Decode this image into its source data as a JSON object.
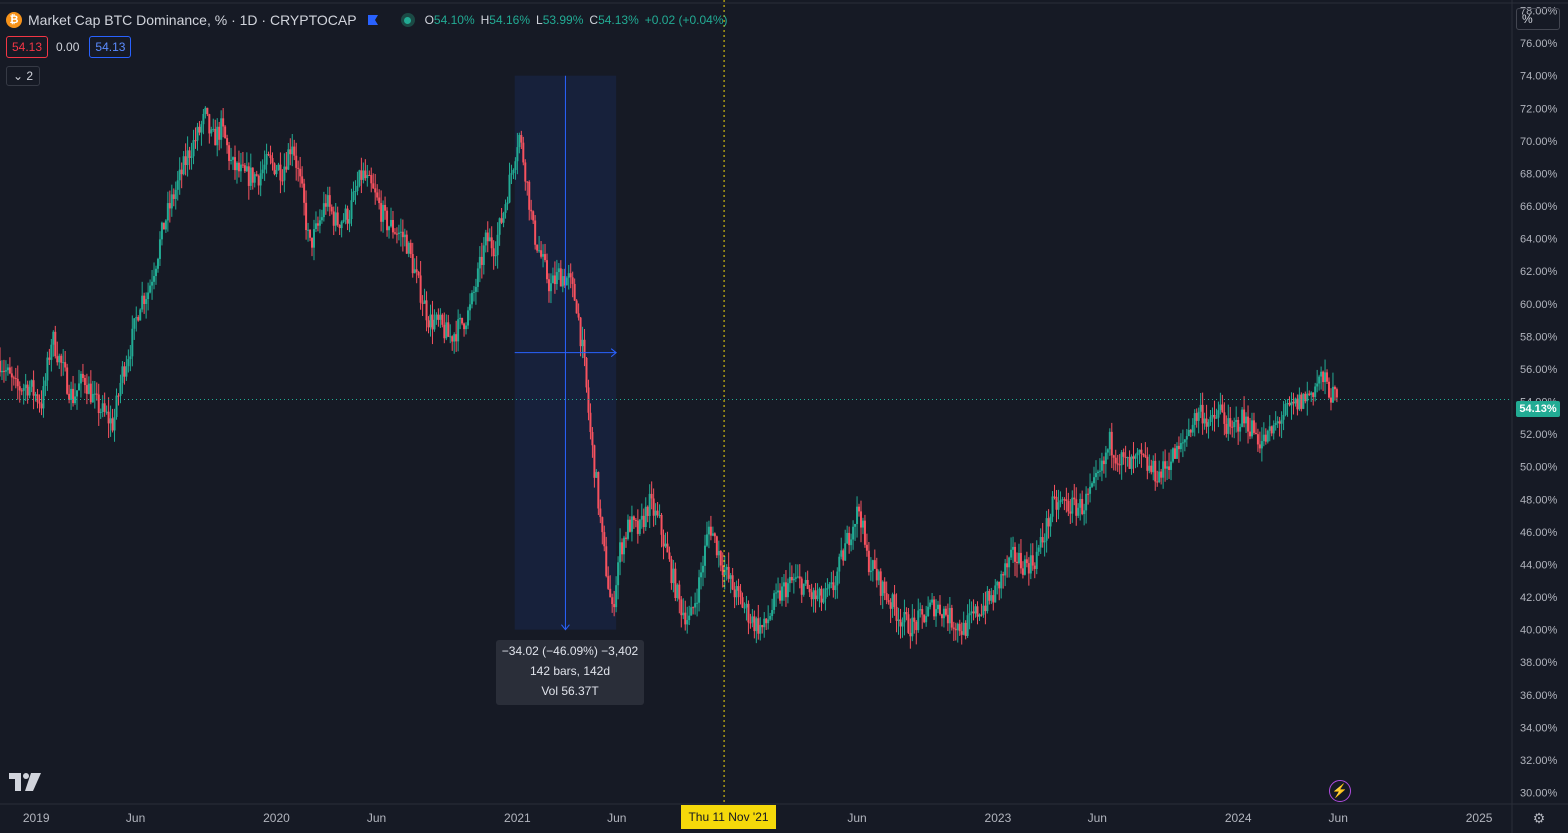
{
  "header": {
    "symbol_icon": "bitcoin-icon",
    "symbol_glyph": "₿",
    "title": "Market Cap BTC Dominance, % · 1D · CRYPTOCAP",
    "ohlc": [
      {
        "k": "O",
        "v": "54.10%"
      },
      {
        "k": "H",
        "v": "54.16%"
      },
      {
        "k": "L",
        "v": "53.99%"
      },
      {
        "k": "C",
        "v": "54.13%"
      },
      {
        "k": "",
        "v": "+0.02 (+0.04%)"
      }
    ],
    "bid": "54.13",
    "spread": "0.00",
    "ask": "54.13",
    "indicators_toggle": "⌄ 2"
  },
  "axis_unit_button": "%",
  "last_price_label": "54.13%",
  "measure_tooltip": {
    "line1": "−34.02 (−46.09%) −3,402",
    "line2": "142 bars, 142d",
    "line3": "Vol 56.37T"
  },
  "crosshair_date": "Thu 11 Nov '21",
  "colors": {
    "background": "#161a25",
    "up": "#22ab94",
    "down": "#f7525f",
    "crosshair": "#f5d90a",
    "measure": "#2962ff",
    "axis_text": "#b2b5be"
  },
  "chart_data": {
    "type": "candlestick",
    "title": "Market Cap BTC Dominance, % · 1D · CRYPTOCAP",
    "interval": "1D",
    "ylabel": "",
    "y_scale": "linear",
    "ylim": [
      29.3,
      78.4
    ],
    "y_ticks": [
      "30.00%",
      "32.00%",
      "34.00%",
      "36.00%",
      "38.00%",
      "40.00%",
      "42.00%",
      "44.00%",
      "46.00%",
      "48.00%",
      "50.00%",
      "52.00%",
      "54.00%",
      "56.00%",
      "58.00%",
      "60.00%",
      "62.00%",
      "64.00%",
      "66.00%",
      "68.00%",
      "70.00%",
      "72.00%",
      "74.00%",
      "76.00%",
      "78.00%"
    ],
    "x_ticks": [
      "2019",
      "Jun",
      "2020",
      "Jun",
      "2021",
      "Jun",
      "Jun",
      "2023",
      "Jun",
      "2024",
      "Jun",
      "2025"
    ],
    "xlim": [
      "2018-11-07",
      "2025-02-20"
    ],
    "x_tick_dates": [
      "2019-01-01",
      "2019-06-01",
      "2020-01-01",
      "2020-06-01",
      "2021-01-01",
      "2021-06-01",
      "2022-06-01",
      "2023-01-01",
      "2023-06-01",
      "2024-01-01",
      "2024-06-01",
      "2025-01-01"
    ],
    "series": [
      {
        "name": "",
        "points": [
          [
            "2018-11-07",
            56.5
          ],
          [
            "2018-12-01",
            54.8
          ],
          [
            "2018-12-20",
            55.0
          ],
          [
            "2019-01-10",
            53.9
          ],
          [
            "2019-01-25",
            58.0
          ],
          [
            "2019-02-10",
            56.0
          ],
          [
            "2019-02-25",
            54.2
          ],
          [
            "2019-03-15",
            55.5
          ],
          [
            "2019-03-30",
            54.0
          ],
          [
            "2019-04-15",
            53.2
          ],
          [
            "2019-04-28",
            52.6
          ],
          [
            "2019-05-12",
            55.8
          ],
          [
            "2019-05-25",
            57.5
          ],
          [
            "2019-06-08",
            60.2
          ],
          [
            "2019-06-20",
            60.8
          ],
          [
            "2019-07-01",
            62.5
          ],
          [
            "2019-07-15",
            65.0
          ],
          [
            "2019-08-01",
            67.0
          ],
          [
            "2019-08-20",
            69.2
          ],
          [
            "2019-09-05",
            70.5
          ],
          [
            "2019-09-15",
            71.5
          ],
          [
            "2019-09-25",
            70.0
          ],
          [
            "2019-10-10",
            70.8
          ],
          [
            "2019-10-25",
            68.5
          ],
          [
            "2019-11-15",
            67.8
          ],
          [
            "2019-12-05",
            67.9
          ],
          [
            "2019-12-20",
            68.7
          ],
          [
            "2020-01-10",
            68.2
          ],
          [
            "2020-01-25",
            70.0
          ],
          [
            "2020-02-10",
            66.5
          ],
          [
            "2020-02-20",
            63.5
          ],
          [
            "2020-03-05",
            64.8
          ],
          [
            "2020-03-16",
            66.3
          ],
          [
            "2020-04-01",
            65.0
          ],
          [
            "2020-04-20",
            65.5
          ],
          [
            "2020-05-10",
            68.0
          ],
          [
            "2020-05-25",
            67.0
          ],
          [
            "2020-06-05",
            66.0
          ],
          [
            "2020-06-15",
            65.0
          ],
          [
            "2020-07-01",
            64.5
          ],
          [
            "2020-07-15",
            64.0
          ],
          [
            "2020-08-01",
            61.5
          ],
          [
            "2020-08-20",
            59.0
          ],
          [
            "2020-09-05",
            58.7
          ],
          [
            "2020-09-20",
            57.9
          ],
          [
            "2020-10-05",
            58.6
          ],
          [
            "2020-10-20",
            59.5
          ],
          [
            "2020-11-01",
            61.5
          ],
          [
            "2020-11-15",
            64.0
          ],
          [
            "2020-11-28",
            63.5
          ],
          [
            "2020-12-10",
            65.5
          ],
          [
            "2020-12-25",
            68.5
          ],
          [
            "2021-01-03",
            70.5
          ],
          [
            "2021-01-12",
            68.5
          ],
          [
            "2021-01-25",
            64.5
          ],
          [
            "2021-02-05",
            63.0
          ],
          [
            "2021-02-20",
            61.0
          ],
          [
            "2021-03-05",
            61.8
          ],
          [
            "2021-03-20",
            61.5
          ],
          [
            "2021-04-01",
            60.0
          ],
          [
            "2021-04-12",
            56.5
          ],
          [
            "2021-04-22",
            52.0
          ],
          [
            "2021-05-01",
            49.0
          ],
          [
            "2021-05-10",
            45.5
          ],
          [
            "2021-05-20",
            42.5
          ],
          [
            "2021-05-25",
            41.0
          ],
          [
            "2021-06-05",
            44.8
          ],
          [
            "2021-06-20",
            46.5
          ],
          [
            "2021-07-05",
            46.0
          ],
          [
            "2021-07-20",
            47.8
          ],
          [
            "2021-08-05",
            46.5
          ],
          [
            "2021-08-20",
            44.0
          ],
          [
            "2021-09-05",
            41.5
          ],
          [
            "2021-09-20",
            40.5
          ],
          [
            "2021-10-05",
            43.0
          ],
          [
            "2021-10-20",
            46.5
          ],
          [
            "2021-11-01",
            45.0
          ],
          [
            "2021-11-11",
            43.7
          ],
          [
            "2021-11-25",
            42.5
          ],
          [
            "2021-12-10",
            41.5
          ],
          [
            "2021-12-25",
            40.5
          ],
          [
            "2022-01-10",
            40.0
          ],
          [
            "2022-01-25",
            41.5
          ],
          [
            "2022-02-10",
            42.5
          ],
          [
            "2022-02-25",
            43.0
          ],
          [
            "2022-03-10",
            42.8
          ],
          [
            "2022-03-25",
            42.0
          ],
          [
            "2022-04-10",
            41.8
          ],
          [
            "2022-04-25",
            42.5
          ],
          [
            "2022-05-10",
            44.5
          ],
          [
            "2022-05-25",
            46.5
          ],
          [
            "2022-06-05",
            47.5
          ],
          [
            "2022-06-15",
            44.5
          ],
          [
            "2022-06-28",
            43.5
          ],
          [
            "2022-07-10",
            42.5
          ],
          [
            "2022-07-25",
            41.5
          ],
          [
            "2022-08-10",
            40.5
          ],
          [
            "2022-08-25",
            40.2
          ],
          [
            "2022-09-10",
            40.8
          ],
          [
            "2022-09-25",
            41.5
          ],
          [
            "2022-10-10",
            41.2
          ],
          [
            "2022-10-25",
            40.5
          ],
          [
            "2022-11-10",
            40.0
          ],
          [
            "2022-11-25",
            40.8
          ],
          [
            "2022-12-10",
            41.5
          ],
          [
            "2022-12-25",
            42.0
          ],
          [
            "2023-01-10",
            43.5
          ],
          [
            "2023-01-25",
            44.5
          ],
          [
            "2023-02-10",
            44.0
          ],
          [
            "2023-02-25",
            44.2
          ],
          [
            "2023-03-10",
            45.5
          ],
          [
            "2023-03-25",
            47.5
          ],
          [
            "2023-04-10",
            47.8
          ],
          [
            "2023-04-25",
            47.5
          ],
          [
            "2023-05-10",
            47.6
          ],
          [
            "2023-05-25",
            48.5
          ],
          [
            "2023-06-10",
            50.0
          ],
          [
            "2023-06-20",
            51.5
          ],
          [
            "2023-07-05",
            50.5
          ],
          [
            "2023-07-20",
            50.0
          ],
          [
            "2023-08-05",
            50.5
          ],
          [
            "2023-08-20",
            49.8
          ],
          [
            "2023-09-05",
            49.5
          ],
          [
            "2023-09-20",
            50.5
          ],
          [
            "2023-10-05",
            51.0
          ],
          [
            "2023-10-20",
            52.5
          ],
          [
            "2023-11-05",
            53.5
          ],
          [
            "2023-11-20",
            52.5
          ],
          [
            "2023-12-05",
            53.5
          ],
          [
            "2023-12-20",
            52.0
          ],
          [
            "2024-01-05",
            53.0
          ],
          [
            "2024-01-20",
            52.5
          ],
          [
            "2024-02-05",
            51.5
          ],
          [
            "2024-02-20",
            52.0
          ],
          [
            "2024-03-05",
            53.0
          ],
          [
            "2024-03-20",
            53.5
          ],
          [
            "2024-04-05",
            54.0
          ],
          [
            "2024-04-20",
            54.5
          ],
          [
            "2024-05-05",
            55.5
          ],
          [
            "2024-05-15",
            55.0
          ],
          [
            "2024-05-25",
            54.2
          ],
          [
            "2024-06-01",
            54.13
          ]
        ]
      }
    ]
  }
}
